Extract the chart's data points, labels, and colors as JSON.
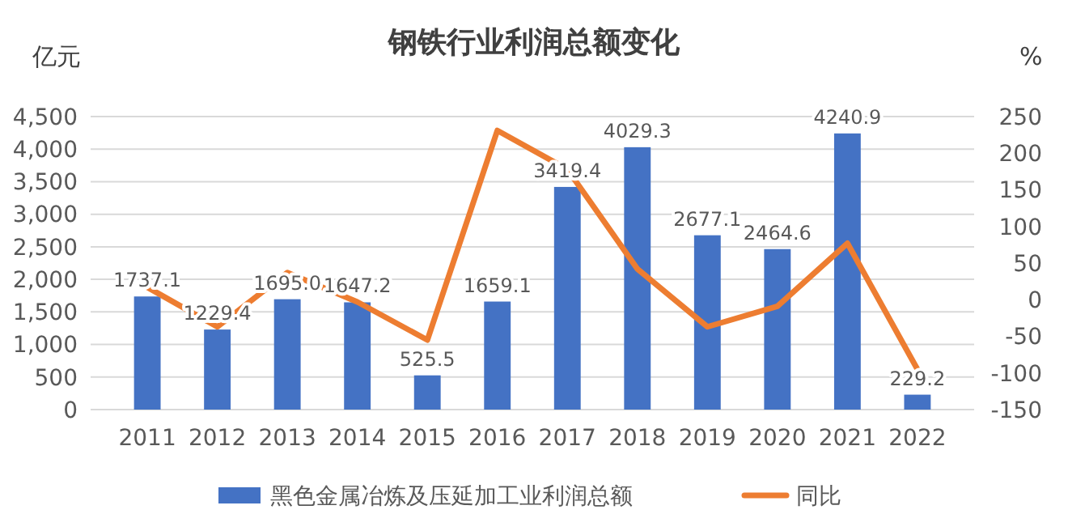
{
  "chart_data": {
    "type": "bar",
    "title": "钢铁行业利润总额变化",
    "ylabel": "亿元",
    "y2label": "%",
    "categories": [
      "2011",
      "2012",
      "2013",
      "2014",
      "2015",
      "2016",
      "2017",
      "2018",
      "2019",
      "2020",
      "2021",
      "2022"
    ],
    "series": [
      {
        "name": "黑色金属冶炼及压延加工业利润总额",
        "color": "#4472c4",
        "values": [
          1737.1,
          1229.4,
          1695.0,
          1647.2,
          525.5,
          1659.1,
          3419.4,
          4029.3,
          2677.1,
          2464.6,
          4240.9,
          229.2
        ],
        "value_labels": [
          "1737.1",
          "1229.4",
          "1695.0",
          "1647.2",
          "525.5",
          "1659.1",
          "3419.4",
          "4029.3",
          "2677.1",
          "2464.6",
          "4240.9",
          "229.2"
        ]
      },
      {
        "name": "同比",
        "type": "line",
        "axis": "y2",
        "color": "#ed7d31",
        "values": [
          17,
          -37,
          37,
          -3,
          -55,
          231,
          178,
          42,
          -37,
          -9,
          77,
          -95
        ]
      }
    ],
    "ylim": [
      0,
      4500
    ],
    "yticks": [
      {
        "value": 0,
        "label": "0"
      },
      {
        "value": 500,
        "label": "500"
      },
      {
        "value": 1000,
        "label": "1,000"
      },
      {
        "value": 1500,
        "label": "1,500"
      },
      {
        "value": 2000,
        "label": "2,000"
      },
      {
        "value": 2500,
        "label": "2,500"
      },
      {
        "value": 3000,
        "label": "3,000"
      },
      {
        "value": 3500,
        "label": "3,500"
      },
      {
        "value": 4000,
        "label": "4,000"
      },
      {
        "value": 4500,
        "label": "4,500"
      }
    ],
    "y2lim": [
      -150,
      250
    ],
    "y2ticks": [
      -150,
      -100,
      -50,
      0,
      50,
      100,
      150,
      200,
      250
    ],
    "grid": "y",
    "legend": "bottom",
    "marker": "none"
  }
}
